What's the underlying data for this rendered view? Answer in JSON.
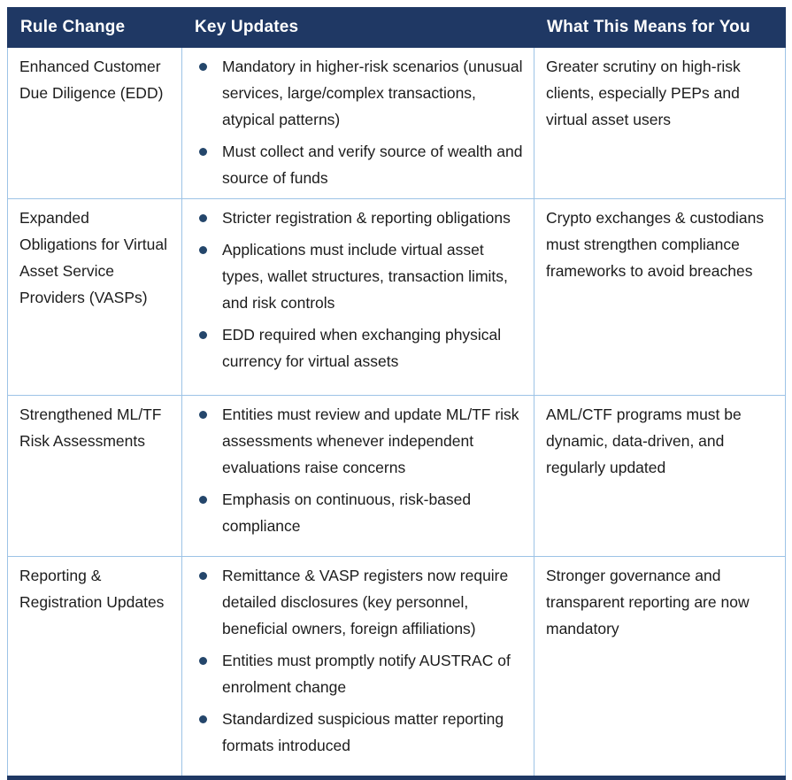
{
  "colors": {
    "header_bg": "#1f3864",
    "header_text": "#ffffff",
    "cell_border": "#9dc3e6",
    "bullet": "#24466b",
    "body_text": "#1c1c1c",
    "bottom_rule": "#1f3864"
  },
  "table": {
    "headers": [
      "Rule Change",
      "Key Updates",
      "What This Means for You"
    ],
    "rows": [
      {
        "rule_change": "Enhanced Customer Due Diligence (EDD)",
        "key_updates": [
          "Mandatory in higher-risk scenarios (unusual services, large/complex transactions, atypical patterns)",
          "Must collect and verify source of wealth and source of funds"
        ],
        "meaning": "Greater scrutiny on high-risk clients, especially PEPs and virtual asset users"
      },
      {
        "rule_change": "Expanded Obligations for Virtual Asset Service Providers (VASPs)",
        "key_updates": [
          "Stricter registration & reporting obligations",
          "Applications must include virtual asset types, wallet structures, transaction limits, and risk controls",
          "EDD required when exchanging physical currency for virtual assets"
        ],
        "meaning": "Crypto exchanges & custodians must strengthen compliance frameworks to avoid breaches"
      },
      {
        "rule_change": "Strengthened ML/TF Risk Assessments",
        "key_updates": [
          "Entities must review and update ML/TF risk assessments whenever independent evaluations raise concerns",
          "Emphasis on continuous, risk-based compliance"
        ],
        "meaning": "AML/CTF programs must be dynamic, data-driven, and regularly updated"
      },
      {
        "rule_change": "Reporting & Registration Updates",
        "key_updates": [
          "Remittance & VASP registers now require detailed disclosures (key personnel, beneficial owners, foreign affiliations)",
          "Entities must promptly notify AUSTRAC of enrolment change",
          "Standardized suspicious matter reporting formats introduced"
        ],
        "meaning": "Stronger governance and transparent reporting are now mandatory"
      }
    ]
  }
}
